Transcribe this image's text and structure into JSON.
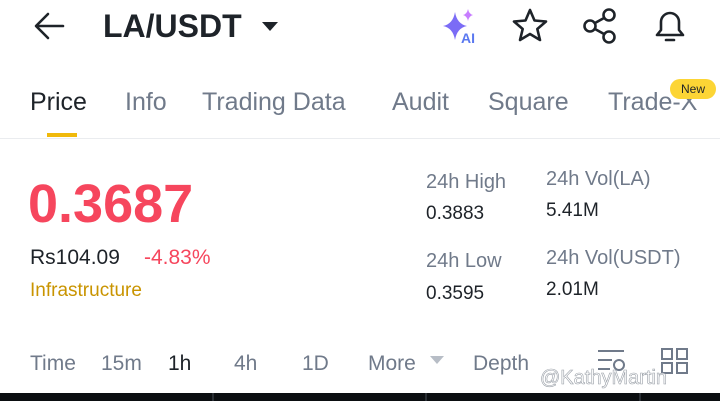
{
  "header": {
    "title": "LA/USDT",
    "ai_badge": "AI"
  },
  "tabs": {
    "items": [
      "Price",
      "Info",
      "Trading Data",
      "Audit",
      "Square",
      "Trade-X"
    ],
    "new_badge": "New"
  },
  "price": {
    "last": "0.3687",
    "local": "Rs104.09",
    "change": "-4.83%",
    "tag": "Infrastructure"
  },
  "stats": [
    {
      "label": "24h High",
      "value": "0.3883"
    },
    {
      "label": "24h Low",
      "value": "0.3595"
    },
    {
      "label": "24h Vol(LA)",
      "value": "5.41M"
    },
    {
      "label": "24h Vol(USDT)",
      "value": "2.01M"
    }
  ],
  "chart_tabs": [
    "Time",
    "15m",
    "1h",
    "4h",
    "1D",
    "More",
    "Depth"
  ],
  "watermark": "@KathyMartin"
}
